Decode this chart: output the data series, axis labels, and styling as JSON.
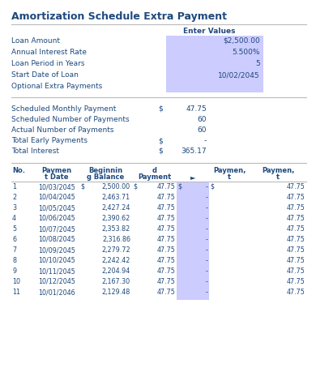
{
  "title": "Amortization Schedule Extra Payment",
  "bg_color": "#FFFFFF",
  "section1_label": "Enter Values",
  "input_fields": [
    {
      "label": "Loan Amount",
      "value": "$2,500.00"
    },
    {
      "label": "Annual Interest Rate",
      "value": "5.500%"
    },
    {
      "label": "Loan Period in Years",
      "value": "5"
    },
    {
      "label": "Start Date of Loan",
      "value": "10/02/2045"
    },
    {
      "label": "Optional Extra Payments",
      "value": ""
    }
  ],
  "summary_fields": [
    {
      "label": "Scheduled Monthly Payment",
      "dollar": "$",
      "value": "47.75"
    },
    {
      "label": "Scheduled Number of Payments",
      "dollar": "",
      "value": "60"
    },
    {
      "label": "Actual Number of Payments",
      "dollar": "",
      "value": "60"
    },
    {
      "label": "Total Early Payments",
      "dollar": "$",
      "value": "-"
    },
    {
      "label": "Total Interest",
      "dollar": "$",
      "value": "365.17"
    }
  ],
  "table_rows": [
    [
      1,
      "10/03/2045",
      "$",
      "2,500.00",
      "$",
      "47.75",
      "$",
      "-",
      "$",
      "47.75"
    ],
    [
      2,
      "10/04/2045",
      "",
      "2,463.71",
      "",
      "47.75",
      "",
      "-",
      "",
      "47.75"
    ],
    [
      3,
      "10/05/2045",
      "",
      "2,427.24",
      "",
      "47.75",
      "",
      "-",
      "",
      "47.75"
    ],
    [
      4,
      "10/06/2045",
      "",
      "2,390.62",
      "",
      "47.75",
      "",
      "-",
      "",
      "47.75"
    ],
    [
      5,
      "10/07/2045",
      "",
      "2,353.82",
      "",
      "47.75",
      "",
      "-",
      "",
      "47.75"
    ],
    [
      6,
      "10/08/2045",
      "",
      "2,316.86",
      "",
      "47.75",
      "",
      "-",
      "",
      "47.75"
    ],
    [
      7,
      "10/09/2045",
      "",
      "2,279.72",
      "",
      "47.75",
      "",
      "-",
      "",
      "47.75"
    ],
    [
      8,
      "10/10/2045",
      "",
      "2,242.42",
      "",
      "47.75",
      "",
      "-",
      "",
      "47.75"
    ],
    [
      9,
      "10/11/2045",
      "",
      "2,204.94",
      "",
      "47.75",
      "",
      "-",
      "",
      "47.75"
    ],
    [
      10,
      "10/12/2045",
      "",
      "2,167.30",
      "",
      "47.75",
      "",
      "-",
      "",
      "47.75"
    ],
    [
      11,
      "10/01/2046",
      "",
      "2,129.48",
      "",
      "47.75",
      "",
      "-",
      "",
      "47.75"
    ]
  ],
  "highlight_color": "#CCCCFF",
  "text_color": "#1F497D",
  "line_color": "#BBBBBB",
  "title_fontsize": 9,
  "label_fontsize": 6.5,
  "header_fontsize": 6.0,
  "row_fontsize": 5.8,
  "figw": 3.9,
  "figh": 4.75,
  "dpi": 100
}
